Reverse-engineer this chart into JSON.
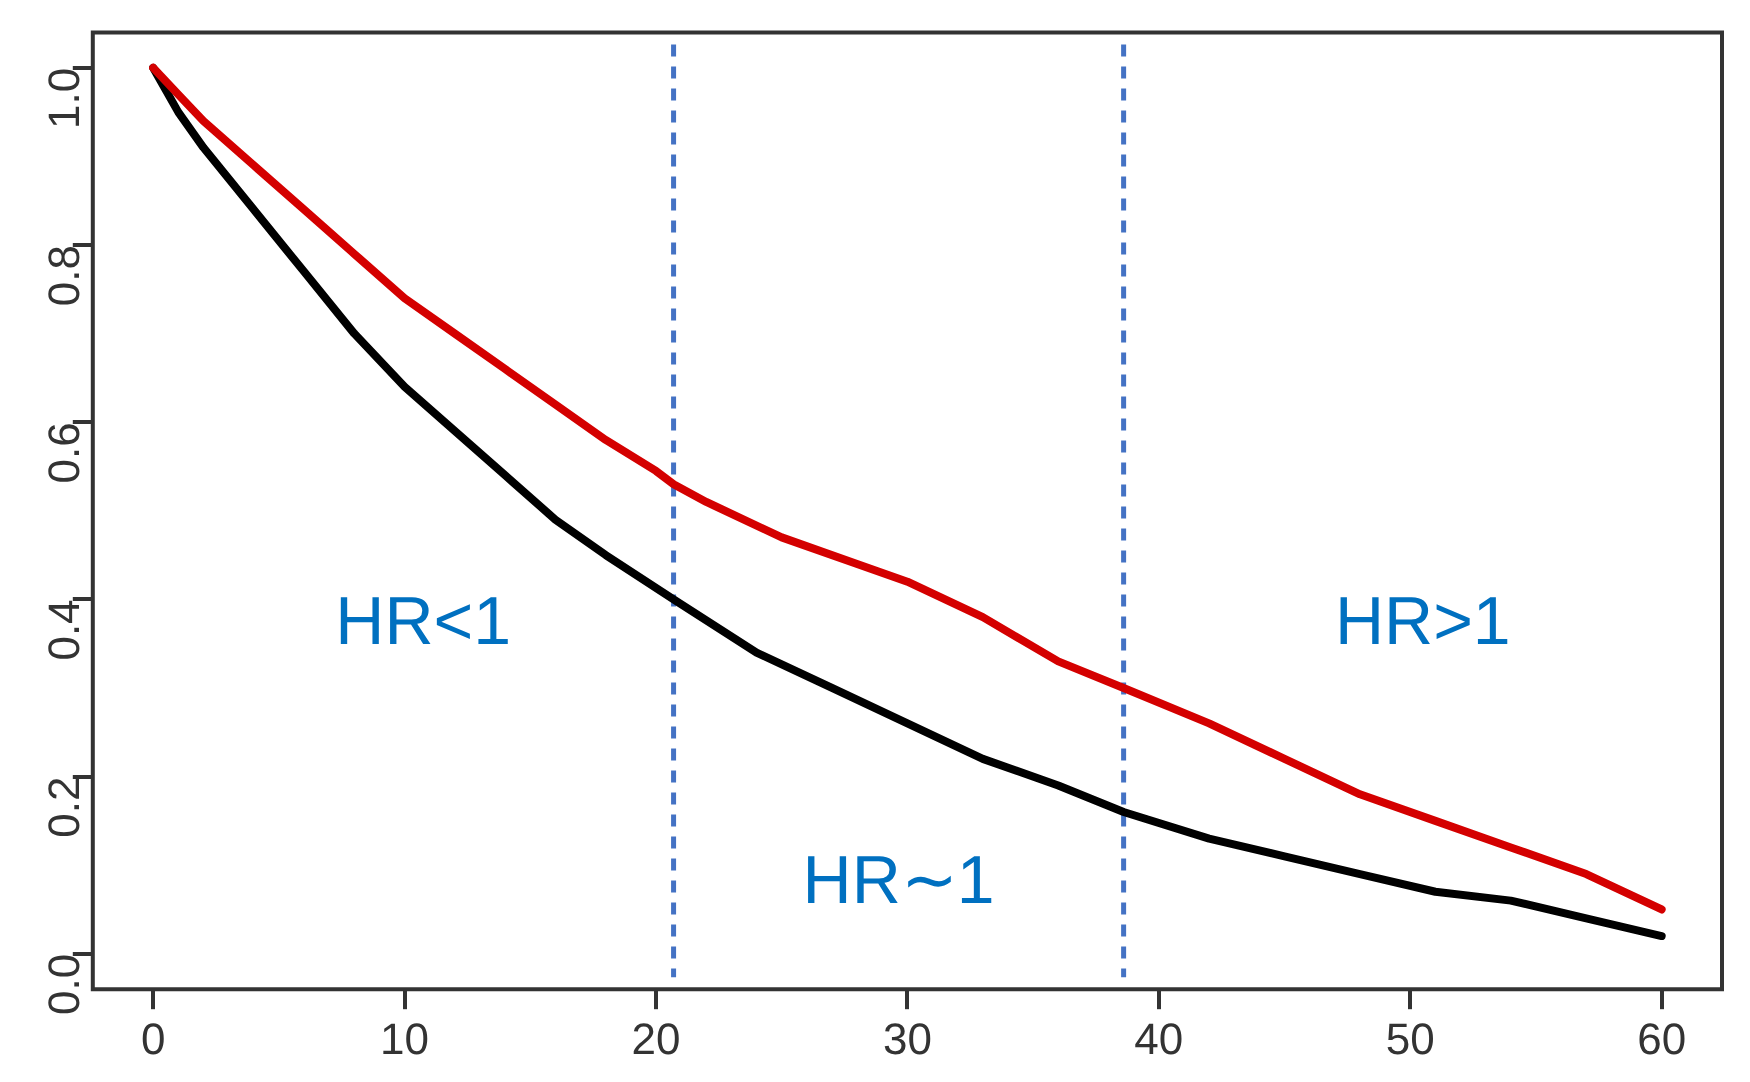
{
  "chart_data": {
    "type": "line",
    "xlim": [
      -2.4,
      62.4
    ],
    "ylim": [
      -0.04,
      1.04
    ],
    "xticks": [
      0,
      10,
      20,
      30,
      40,
      50,
      60
    ],
    "yticks": [
      {
        "value": 0,
        "label": "0.0"
      },
      {
        "value": 0.2,
        "label": "0.2"
      },
      {
        "value": 0.4,
        "label": "0.4"
      },
      {
        "value": 0.6,
        "label": "0.6"
      },
      {
        "value": 0.8,
        "label": "0.8"
      },
      {
        "value": 1,
        "label": "1.0"
      }
    ],
    "grid": false,
    "legend": false,
    "marker": "none",
    "line_style": "solid",
    "series": [
      {
        "color": "#d40000",
        "x": [
          0,
          1,
          2,
          4,
          6,
          8,
          10,
          12,
          14,
          16,
          18,
          20,
          20.7,
          22,
          25,
          28,
          30,
          33,
          36,
          38.6,
          42,
          45,
          48,
          51,
          54,
          57,
          60
        ],
        "values": [
          1.0,
          0.97,
          0.94,
          0.89,
          0.84,
          0.79,
          0.74,
          0.7,
          0.66,
          0.62,
          0.58,
          0.545,
          0.53,
          0.51,
          0.47,
          0.44,
          0.42,
          0.38,
          0.33,
          0.3,
          0.26,
          0.22,
          0.18,
          0.15,
          0.12,
          0.09,
          0.05
        ]
      },
      {
        "color": "#000000",
        "x": [
          0,
          1,
          2,
          4,
          6,
          8,
          10,
          12,
          14,
          16,
          18,
          20.7,
          24,
          27,
          30,
          33,
          36,
          38.6,
          42,
          45,
          48,
          51,
          54,
          57,
          60
        ],
        "values": [
          1.0,
          0.95,
          0.91,
          0.84,
          0.77,
          0.7,
          0.64,
          0.59,
          0.54,
          0.49,
          0.45,
          0.4,
          0.34,
          0.3,
          0.26,
          0.22,
          0.19,
          0.16,
          0.13,
          0.11,
          0.09,
          0.07,
          0.06,
          0.04,
          0.02
        ]
      }
    ],
    "ref_lines": [
      {
        "axis": "x",
        "value": 20.7,
        "color": "#4472c4",
        "line_style": "dashed"
      },
      {
        "axis": "x",
        "value": 38.6,
        "color": "#4472c4",
        "line_style": "dashed"
      }
    ],
    "annotations": [
      "HR<1",
      "HR∼1",
      "HR>1"
    ]
  }
}
